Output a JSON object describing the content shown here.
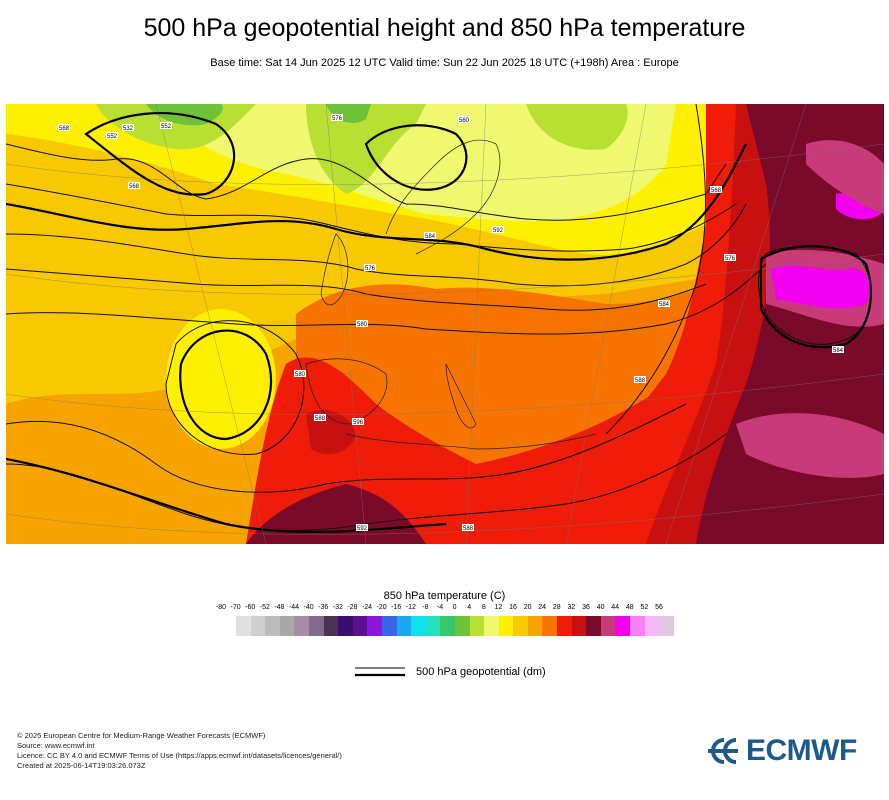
{
  "header": {
    "title": "500 hPa geopotential height and 850 hPa temperature",
    "subtitle": "Base time: Sat 14 Jun 2025 12 UTC Valid time: Sun 22 Jun 2025 18 UTC (+198h) Area : Europe"
  },
  "legend": {
    "temperature_title": "850 hPa temperature (C)",
    "ticks": [
      "-80",
      "-70",
      "-60",
      "-52",
      "-48",
      "-44",
      "-40",
      "-36",
      "-32",
      "-28",
      "-24",
      "-20",
      "-16",
      "-12",
      "-8",
      "-4",
      "0",
      "4",
      "8",
      "12",
      "16",
      "20",
      "24",
      "28",
      "32",
      "36",
      "40",
      "44",
      "48",
      "52",
      "56"
    ],
    "colors": [
      "#e0e0e0",
      "#cfcfcf",
      "#bcbcbc",
      "#a8a8a8",
      "#a78bab",
      "#806a8e",
      "#4b3452",
      "#3a0d6e",
      "#5c0f8f",
      "#8a16e0",
      "#3a64e8",
      "#1ca8f0",
      "#0ee0f0",
      "#20e0c0",
      "#3ac66a",
      "#6ec23a",
      "#b8e032",
      "#f0f870",
      "#fff000",
      "#f8c800",
      "#f8a400",
      "#f87400",
      "#ee1c08",
      "#c81010",
      "#7a0a2a",
      "#c83a78",
      "#f400f0",
      "#f680f4",
      "#f8b8f4",
      "#e0c8e0"
    ],
    "geopotential_label": "500 hPa geopotential (dm)"
  },
  "footer": {
    "copyright": "© 2025 European Centre for Medium-Range Weather Forecasts (ECMWF)",
    "source": "Source: www.ecmwf.int",
    "licence": "Licence: CC BY 4.0 and ECMWF Terms of Use (https://apps.ecmwf.int/datasets/licences/general/)",
    "created": "Created at 2025-06-14T19:03:26.073Z"
  },
  "logo": {
    "text": "ECMWF",
    "color": "#1d5a8c"
  },
  "map_labels": [
    "532",
    "552",
    "568",
    "576",
    "584",
    "592",
    "576",
    "580",
    "568",
    "552",
    "560",
    "580",
    "588",
    "596",
    "588",
    "584",
    "576",
    "568",
    "592",
    "584",
    "588"
  ]
}
